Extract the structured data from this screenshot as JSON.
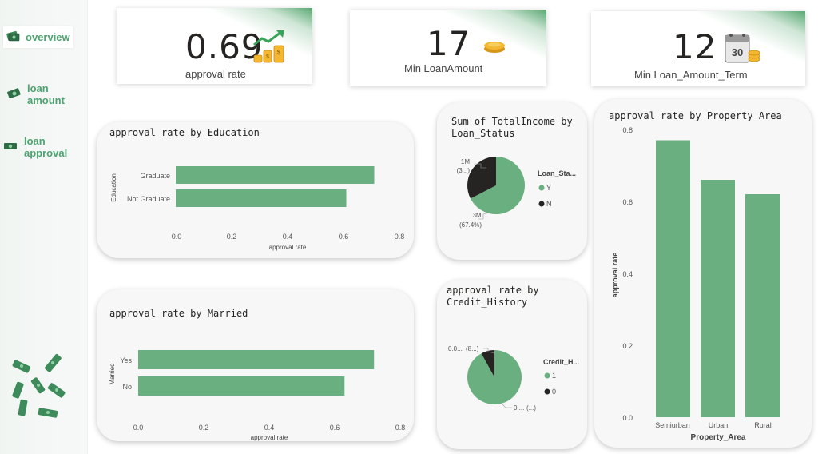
{
  "nav": {
    "items": [
      {
        "label": "overview",
        "icon": "money-stack-icon"
      },
      {
        "label": "loan amount",
        "icon": "money-bill-icon"
      },
      {
        "label": "loan approval",
        "icon": "money-bill-icon"
      }
    ]
  },
  "kpis": [
    {
      "value": "0.69",
      "label": "approval rate",
      "icon": "growth-coins-icon"
    },
    {
      "value": "17",
      "label": "Min LoanAmount",
      "icon": "coin-stack-icon"
    },
    {
      "value": "12",
      "label": "Min Loan_Amount_Term",
      "icon": "calendar-money-icon"
    }
  ],
  "colors": {
    "green": "#6aaf80",
    "dark": "#252423",
    "accent": "#4ea371"
  },
  "chart_data": [
    {
      "type": "bar",
      "orientation": "horizontal",
      "title": "approval rate by Education",
      "ylabel": "Education",
      "xlabel": "approval rate",
      "categories": [
        "Graduate",
        "Not Graduate"
      ],
      "values": [
        0.71,
        0.61
      ],
      "xlim": [
        0,
        0.8
      ],
      "xticks": [
        "0.0",
        "0.2",
        "0.4",
        "0.6",
        "0.8"
      ]
    },
    {
      "type": "bar",
      "orientation": "horizontal",
      "title": "approval rate by Married",
      "ylabel": "Married",
      "xlabel": "approval rate",
      "categories": [
        "Yes",
        "No"
      ],
      "values": [
        0.72,
        0.63
      ],
      "xlim": [
        0,
        0.8
      ],
      "xticks": [
        "0.0",
        "0.2",
        "0.4",
        "0.6",
        "0.8"
      ]
    },
    {
      "type": "pie",
      "title": "Sum of TotalIncome by Loan_Status",
      "legend_title": "Loan_Sta...",
      "slices": [
        {
          "name": "Y",
          "value": 67.4,
          "label_top": "3M",
          "label_bottom": "(67.4%)",
          "color": "#6aaf80"
        },
        {
          "name": "N",
          "value": 32.6,
          "label_top": "1M",
          "label_bottom": "(3...)",
          "color": "#252423"
        }
      ]
    },
    {
      "type": "pie",
      "title": "approval rate by Credit_History",
      "legend_title": "Credit_H...",
      "slices": [
        {
          "name": "1",
          "value": 92,
          "label_top": "0....",
          "label_bottom": "(...)",
          "color": "#6aaf80"
        },
        {
          "name": "0",
          "value": 8,
          "label_top": "0.0...",
          "label_bottom": "(8...)",
          "color": "#252423"
        }
      ]
    },
    {
      "type": "bar",
      "orientation": "vertical",
      "title": "approval rate by Property_Area",
      "xlabel": "Property_Area",
      "ylabel": "approval rate",
      "categories": [
        "Semiurban",
        "Urban",
        "Rural"
      ],
      "values": [
        0.77,
        0.66,
        0.62
      ],
      "ylim": [
        0,
        0.8
      ],
      "yticks": [
        "0.0",
        "0.2",
        "0.4",
        "0.6",
        "0.8"
      ]
    }
  ]
}
